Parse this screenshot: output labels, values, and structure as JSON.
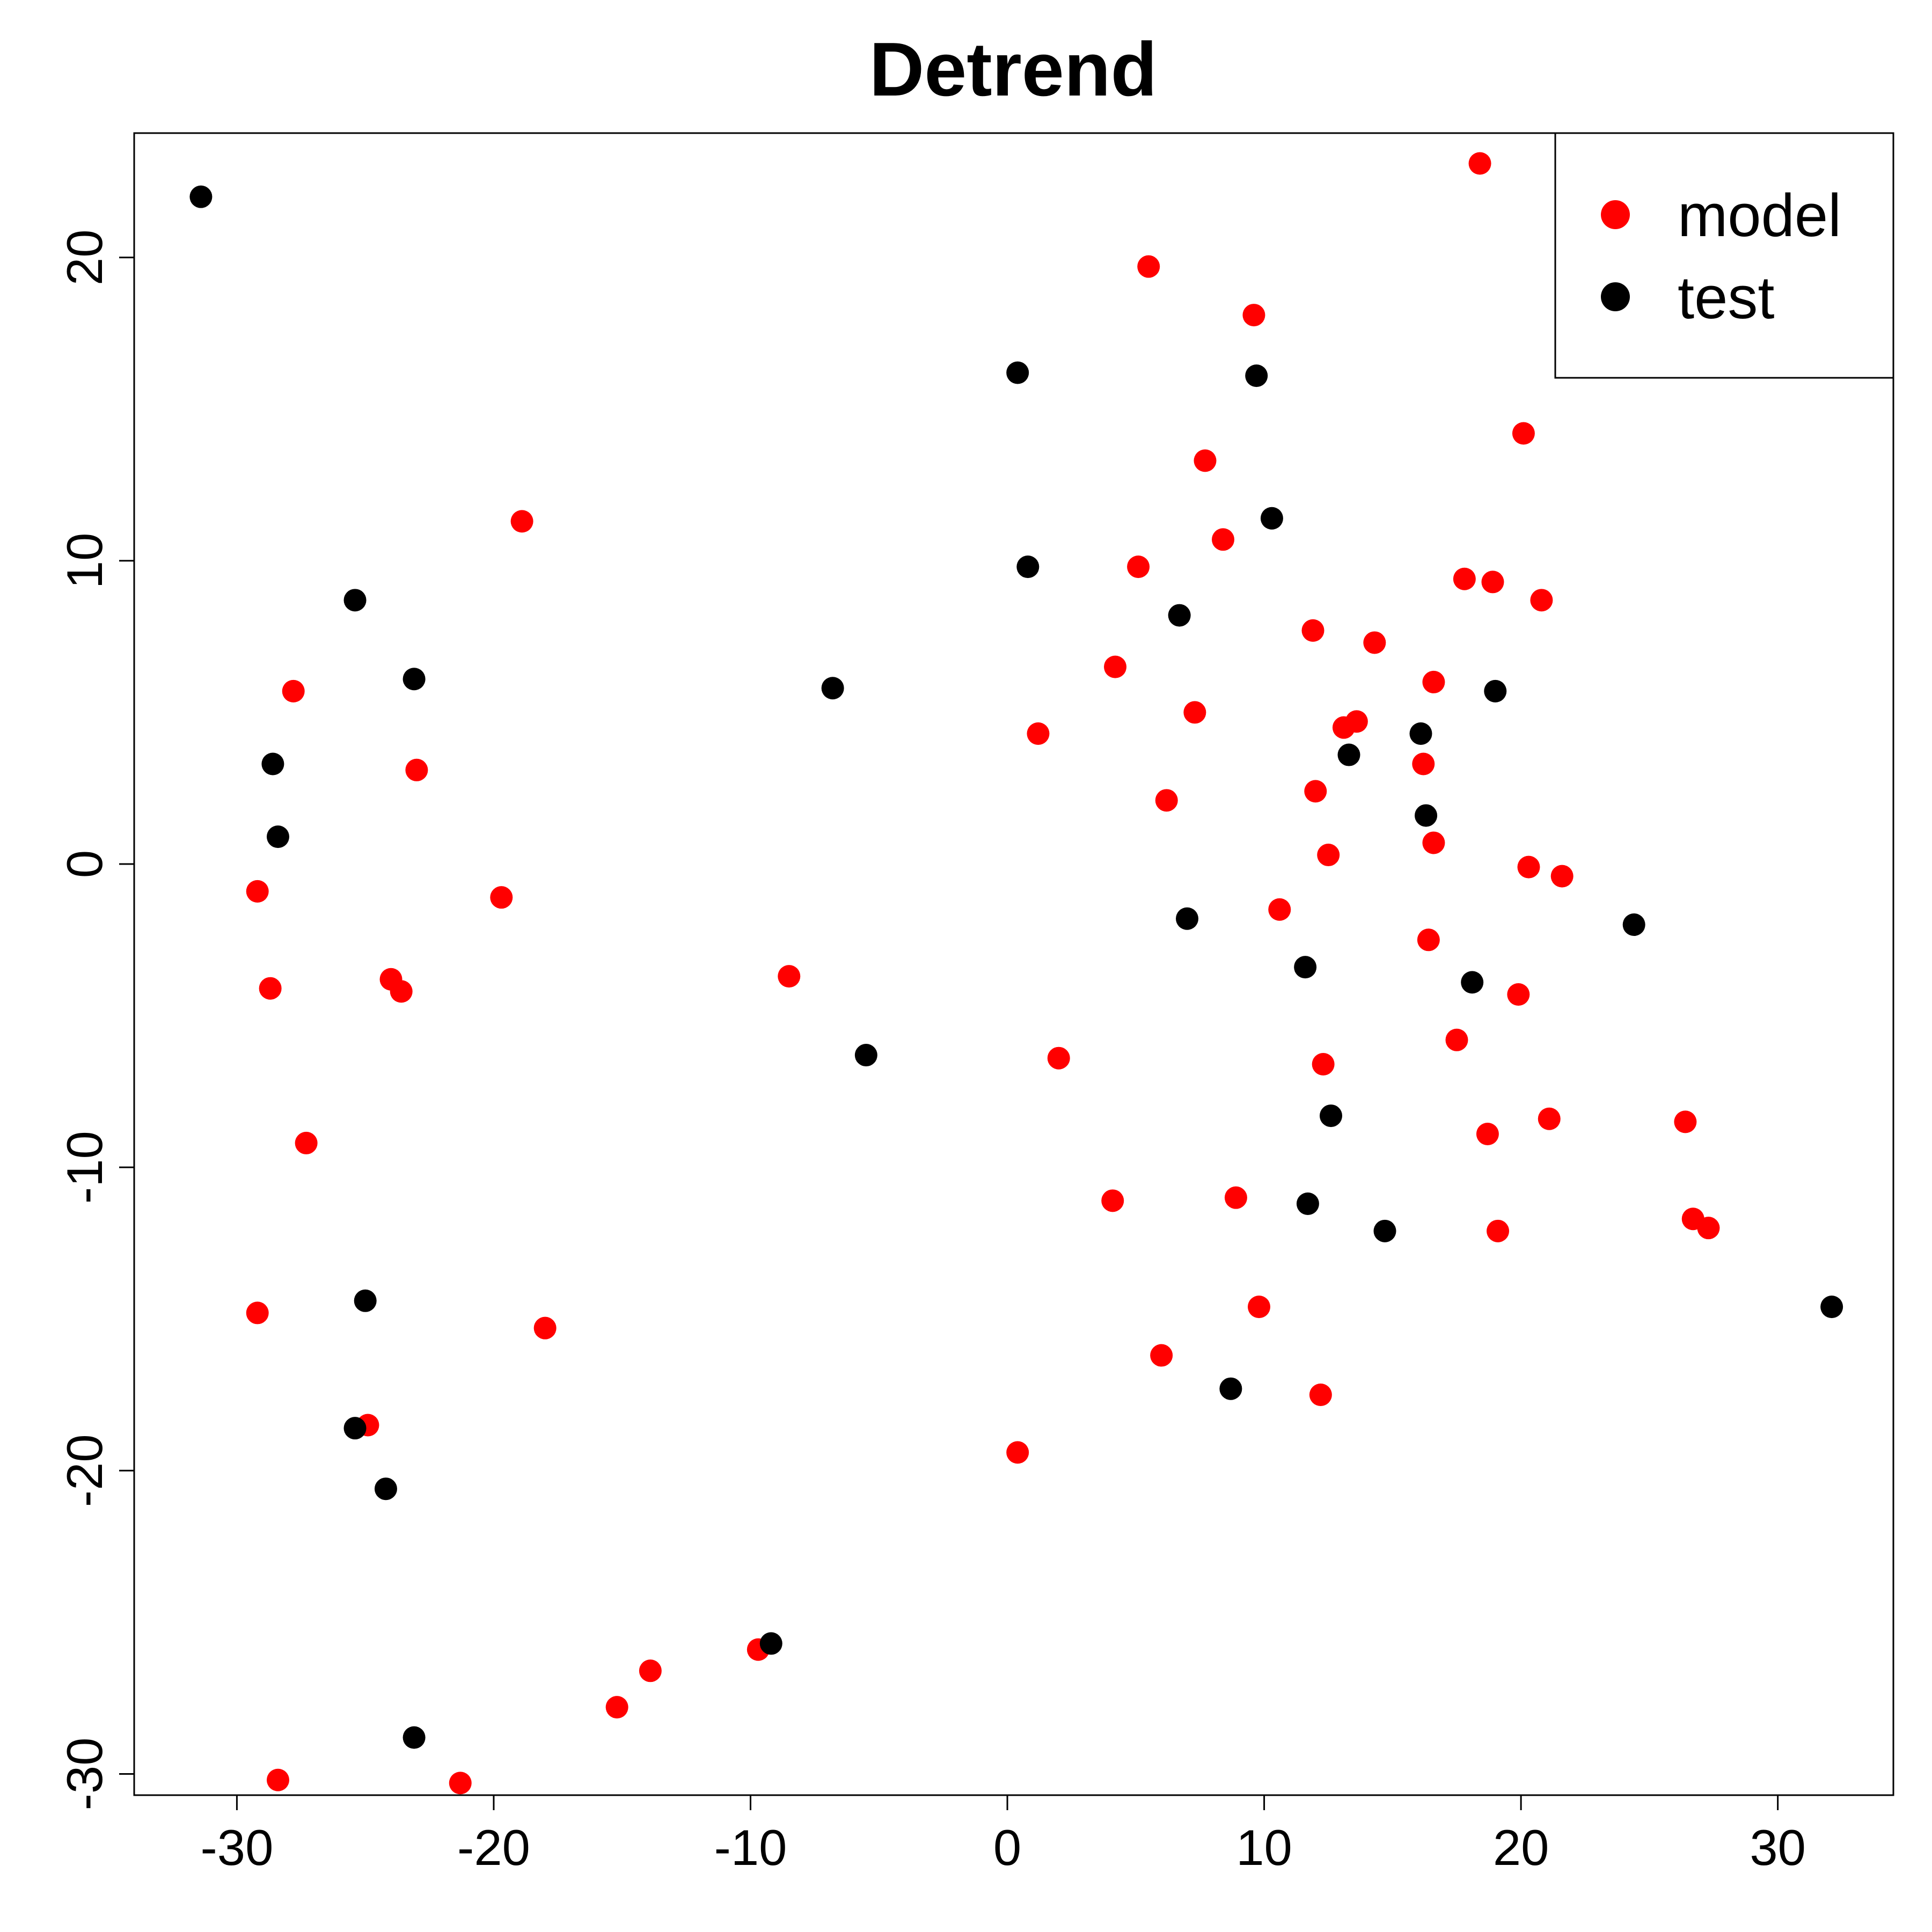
{
  "chart_data": {
    "type": "scatter",
    "title": "Detrend",
    "xlabel": "",
    "ylabel": "",
    "xlim": [
      -34,
      34.5
    ],
    "ylim": [
      -30.7,
      24.1
    ],
    "xticks": [
      -30,
      -20,
      -10,
      0,
      10,
      20,
      30
    ],
    "yticks": [
      -30,
      -20,
      -10,
      0,
      10,
      20
    ],
    "xtick_labels": [
      "-30",
      "-20",
      "-10",
      "0",
      "10",
      "20",
      "30"
    ],
    "ytick_labels": [
      "-30",
      "-20",
      "-10",
      "0",
      "10",
      "20"
    ],
    "grid": false,
    "legend_position": "top-right",
    "series": [
      {
        "name": "model",
        "color": "#ff0000",
        "points": [
          [
            18.4,
            23.1
          ],
          [
            5.5,
            19.7
          ],
          [
            9.6,
            18.1
          ],
          [
            20.1,
            14.2
          ],
          [
            7.7,
            13.3
          ],
          [
            -18.9,
            11.3
          ],
          [
            8.4,
            10.7
          ],
          [
            5.1,
            9.8
          ],
          [
            17.8,
            9.4
          ],
          [
            18.9,
            9.3
          ],
          [
            20.8,
            8.7
          ],
          [
            11.9,
            7.7
          ],
          [
            14.3,
            7.3
          ],
          [
            4.2,
            6.5
          ],
          [
            16.6,
            6.0
          ],
          [
            -27.8,
            5.7
          ],
          [
            7.3,
            5.0
          ],
          [
            13.6,
            4.7
          ],
          [
            13.1,
            4.5
          ],
          [
            1.2,
            4.3
          ],
          [
            16.2,
            3.3
          ],
          [
            -23.0,
            3.1
          ],
          [
            12.0,
            2.4
          ],
          [
            6.2,
            2.1
          ],
          [
            16.6,
            0.7
          ],
          [
            12.5,
            0.3
          ],
          [
            20.3,
            -0.1
          ],
          [
            21.6,
            -0.4
          ],
          [
            -29.2,
            -0.9
          ],
          [
            -19.7,
            -1.1
          ],
          [
            10.6,
            -1.5
          ],
          [
            16.4,
            -2.5
          ],
          [
            -8.5,
            -3.7
          ],
          [
            -24.0,
            -3.8
          ],
          [
            -28.7,
            -4.1
          ],
          [
            -23.6,
            -4.2
          ],
          [
            19.9,
            -4.3
          ],
          [
            17.5,
            -5.8
          ],
          [
            2.0,
            -6.4
          ],
          [
            12.3,
            -6.6
          ],
          [
            21.1,
            -8.4
          ],
          [
            26.4,
            -8.5
          ],
          [
            18.7,
            -8.9
          ],
          [
            -27.3,
            -9.2
          ],
          [
            4.1,
            -11.1
          ],
          [
            8.9,
            -11.0
          ],
          [
            26.7,
            -11.7
          ],
          [
            27.3,
            -12.0
          ],
          [
            19.1,
            -12.1
          ],
          [
            9.8,
            -14.6
          ],
          [
            -29.2,
            -14.8
          ],
          [
            -18.0,
            -15.3
          ],
          [
            6.0,
            -16.2
          ],
          [
            12.2,
            -17.5
          ],
          [
            -24.9,
            -18.5
          ],
          [
            0.4,
            -19.4
          ],
          [
            -9.7,
            -25.9
          ],
          [
            -13.9,
            -26.6
          ],
          [
            -15.2,
            -27.8
          ],
          [
            -28.4,
            -30.2
          ],
          [
            -21.3,
            -30.3
          ]
        ]
      },
      {
        "name": "test",
        "color": "#000000",
        "points": [
          [
            -31.4,
            22.0
          ],
          [
            0.4,
            16.2
          ],
          [
            9.7,
            16.1
          ],
          [
            10.3,
            11.4
          ],
          [
            0.8,
            9.8
          ],
          [
            -25.4,
            8.7
          ],
          [
            6.7,
            8.2
          ],
          [
            -23.1,
            6.1
          ],
          [
            -6.8,
            5.8
          ],
          [
            19.0,
            5.7
          ],
          [
            16.1,
            4.3
          ],
          [
            13.3,
            3.6
          ],
          [
            -28.6,
            3.3
          ],
          [
            16.3,
            1.6
          ],
          [
            -28.4,
            0.9
          ],
          [
            7.0,
            -1.8
          ],
          [
            24.4,
            -2.0
          ],
          [
            11.6,
            -3.4
          ],
          [
            18.1,
            -3.9
          ],
          [
            -5.5,
            -6.3
          ],
          [
            12.6,
            -8.3
          ],
          [
            11.7,
            -11.2
          ],
          [
            14.7,
            -12.1
          ],
          [
            32.1,
            -14.6
          ],
          [
            -25.0,
            -14.4
          ],
          [
            8.7,
            -17.3
          ],
          [
            -25.4,
            -18.6
          ],
          [
            -24.2,
            -20.6
          ],
          [
            -9.2,
            -25.7
          ],
          [
            -23.1,
            -28.8
          ]
        ]
      }
    ]
  }
}
